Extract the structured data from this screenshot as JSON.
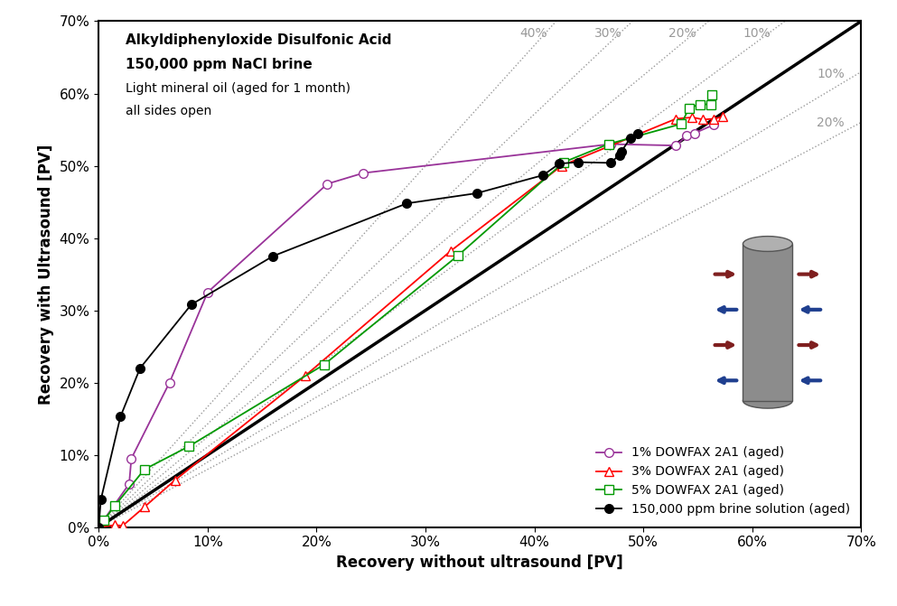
{
  "chart_data": {
    "type": "line",
    "x_label": "Recovery without ultrasound [PV]",
    "y_label": "Recovery with Ultrasound [PV]",
    "annotations": [
      "Alkyldiphenyloxide Disulfonic Acid",
      "150,000 ppm NaCl brine",
      "Light mineral oil (aged for 1 month)",
      "all sides open"
    ],
    "xlim": [
      0,
      70
    ],
    "ylim": [
      0,
      70
    ],
    "xticks": [
      {
        "value": 0,
        "label": "0%"
      },
      {
        "value": 10,
        "label": "10%"
      },
      {
        "value": 20,
        "label": "20%"
      },
      {
        "value": 30,
        "label": "30%"
      },
      {
        "value": 40,
        "label": "40%"
      },
      {
        "value": 50,
        "label": "50%"
      },
      {
        "value": 60,
        "label": "60%"
      },
      {
        "value": 70,
        "label": "70%"
      }
    ],
    "yticks": [
      {
        "value": 0,
        "label": "0%"
      },
      {
        "value": 10,
        "label": "10%"
      },
      {
        "value": 20,
        "label": "20%"
      },
      {
        "value": 30,
        "label": "30%"
      },
      {
        "value": 40,
        "label": "40%"
      },
      {
        "value": 50,
        "label": "50%"
      },
      {
        "value": 60,
        "label": "60%"
      },
      {
        "value": 70,
        "label": "70%"
      }
    ],
    "grid": false,
    "legend": "lower right",
    "reference_lines_above": [
      {
        "value": 40,
        "label": "40%"
      },
      {
        "value": 30,
        "label": "30%"
      },
      {
        "value": 20,
        "label": "20%"
      },
      {
        "value": 10,
        "label": "10%"
      }
    ],
    "reference_lines_below": [
      {
        "value": 10,
        "label": "10%"
      },
      {
        "value": 20,
        "label": "20%"
      }
    ],
    "series": [
      {
        "name": "1% DOWFAX 2A1 (aged)",
        "color": "#993399",
        "marker": "circle",
        "line_style": "solid",
        "x": [
          0,
          2.8,
          3.0,
          6.5,
          10.0,
          21.0,
          24.3,
          47.0,
          53.0,
          54.0,
          54.7,
          56.5
        ],
        "values": [
          0,
          6.0,
          9.5,
          20.0,
          32.5,
          47.5,
          49.0,
          53.0,
          52.8,
          54.2,
          54.5,
          55.7
        ]
      },
      {
        "name": "3% DOWFAX 2A1 (aged)",
        "color": "#ff0000",
        "marker": "triangle",
        "line_style": "solid",
        "x": [
          0,
          1.5,
          2.2,
          4.2,
          7.0,
          19.0,
          32.3,
          42.5,
          53.0,
          54.5,
          55.5,
          56.5,
          57.3
        ],
        "values": [
          0,
          0.3,
          0.2,
          2.8,
          6.5,
          21.0,
          38.2,
          50.0,
          56.5,
          56.7,
          56.4,
          56.5,
          56.8
        ]
      },
      {
        "name": "5% DOWFAX 2A1 (aged)",
        "color": "#009900",
        "marker": "square",
        "line_style": "solid",
        "x": [
          0,
          0.5,
          1.5,
          4.2,
          8.3,
          20.7,
          33.0,
          42.7,
          46.8,
          53.5,
          54.2,
          55.2,
          56.2,
          56.3
        ],
        "values": [
          0,
          1.0,
          3.0,
          8.0,
          11.2,
          22.5,
          37.6,
          50.5,
          53.0,
          55.8,
          58.0,
          58.5,
          58.5,
          59.8
        ]
      },
      {
        "name": "150,000 ppm brine solution (aged)",
        "color": "#000000",
        "marker": "filled_circle",
        "line_style": "solid",
        "x": [
          0,
          0.2,
          2.0,
          3.8,
          8.5,
          16.0,
          28.3,
          34.7,
          40.8,
          42.3,
          44.0,
          47.0,
          47.8,
          48.0,
          48.8,
          49.5
        ],
        "values": [
          0,
          3.8,
          15.3,
          22.0,
          30.8,
          37.5,
          44.8,
          46.2,
          48.7,
          50.3,
          50.5,
          50.4,
          51.5,
          52.0,
          53.8,
          54.5
        ]
      }
    ]
  }
}
